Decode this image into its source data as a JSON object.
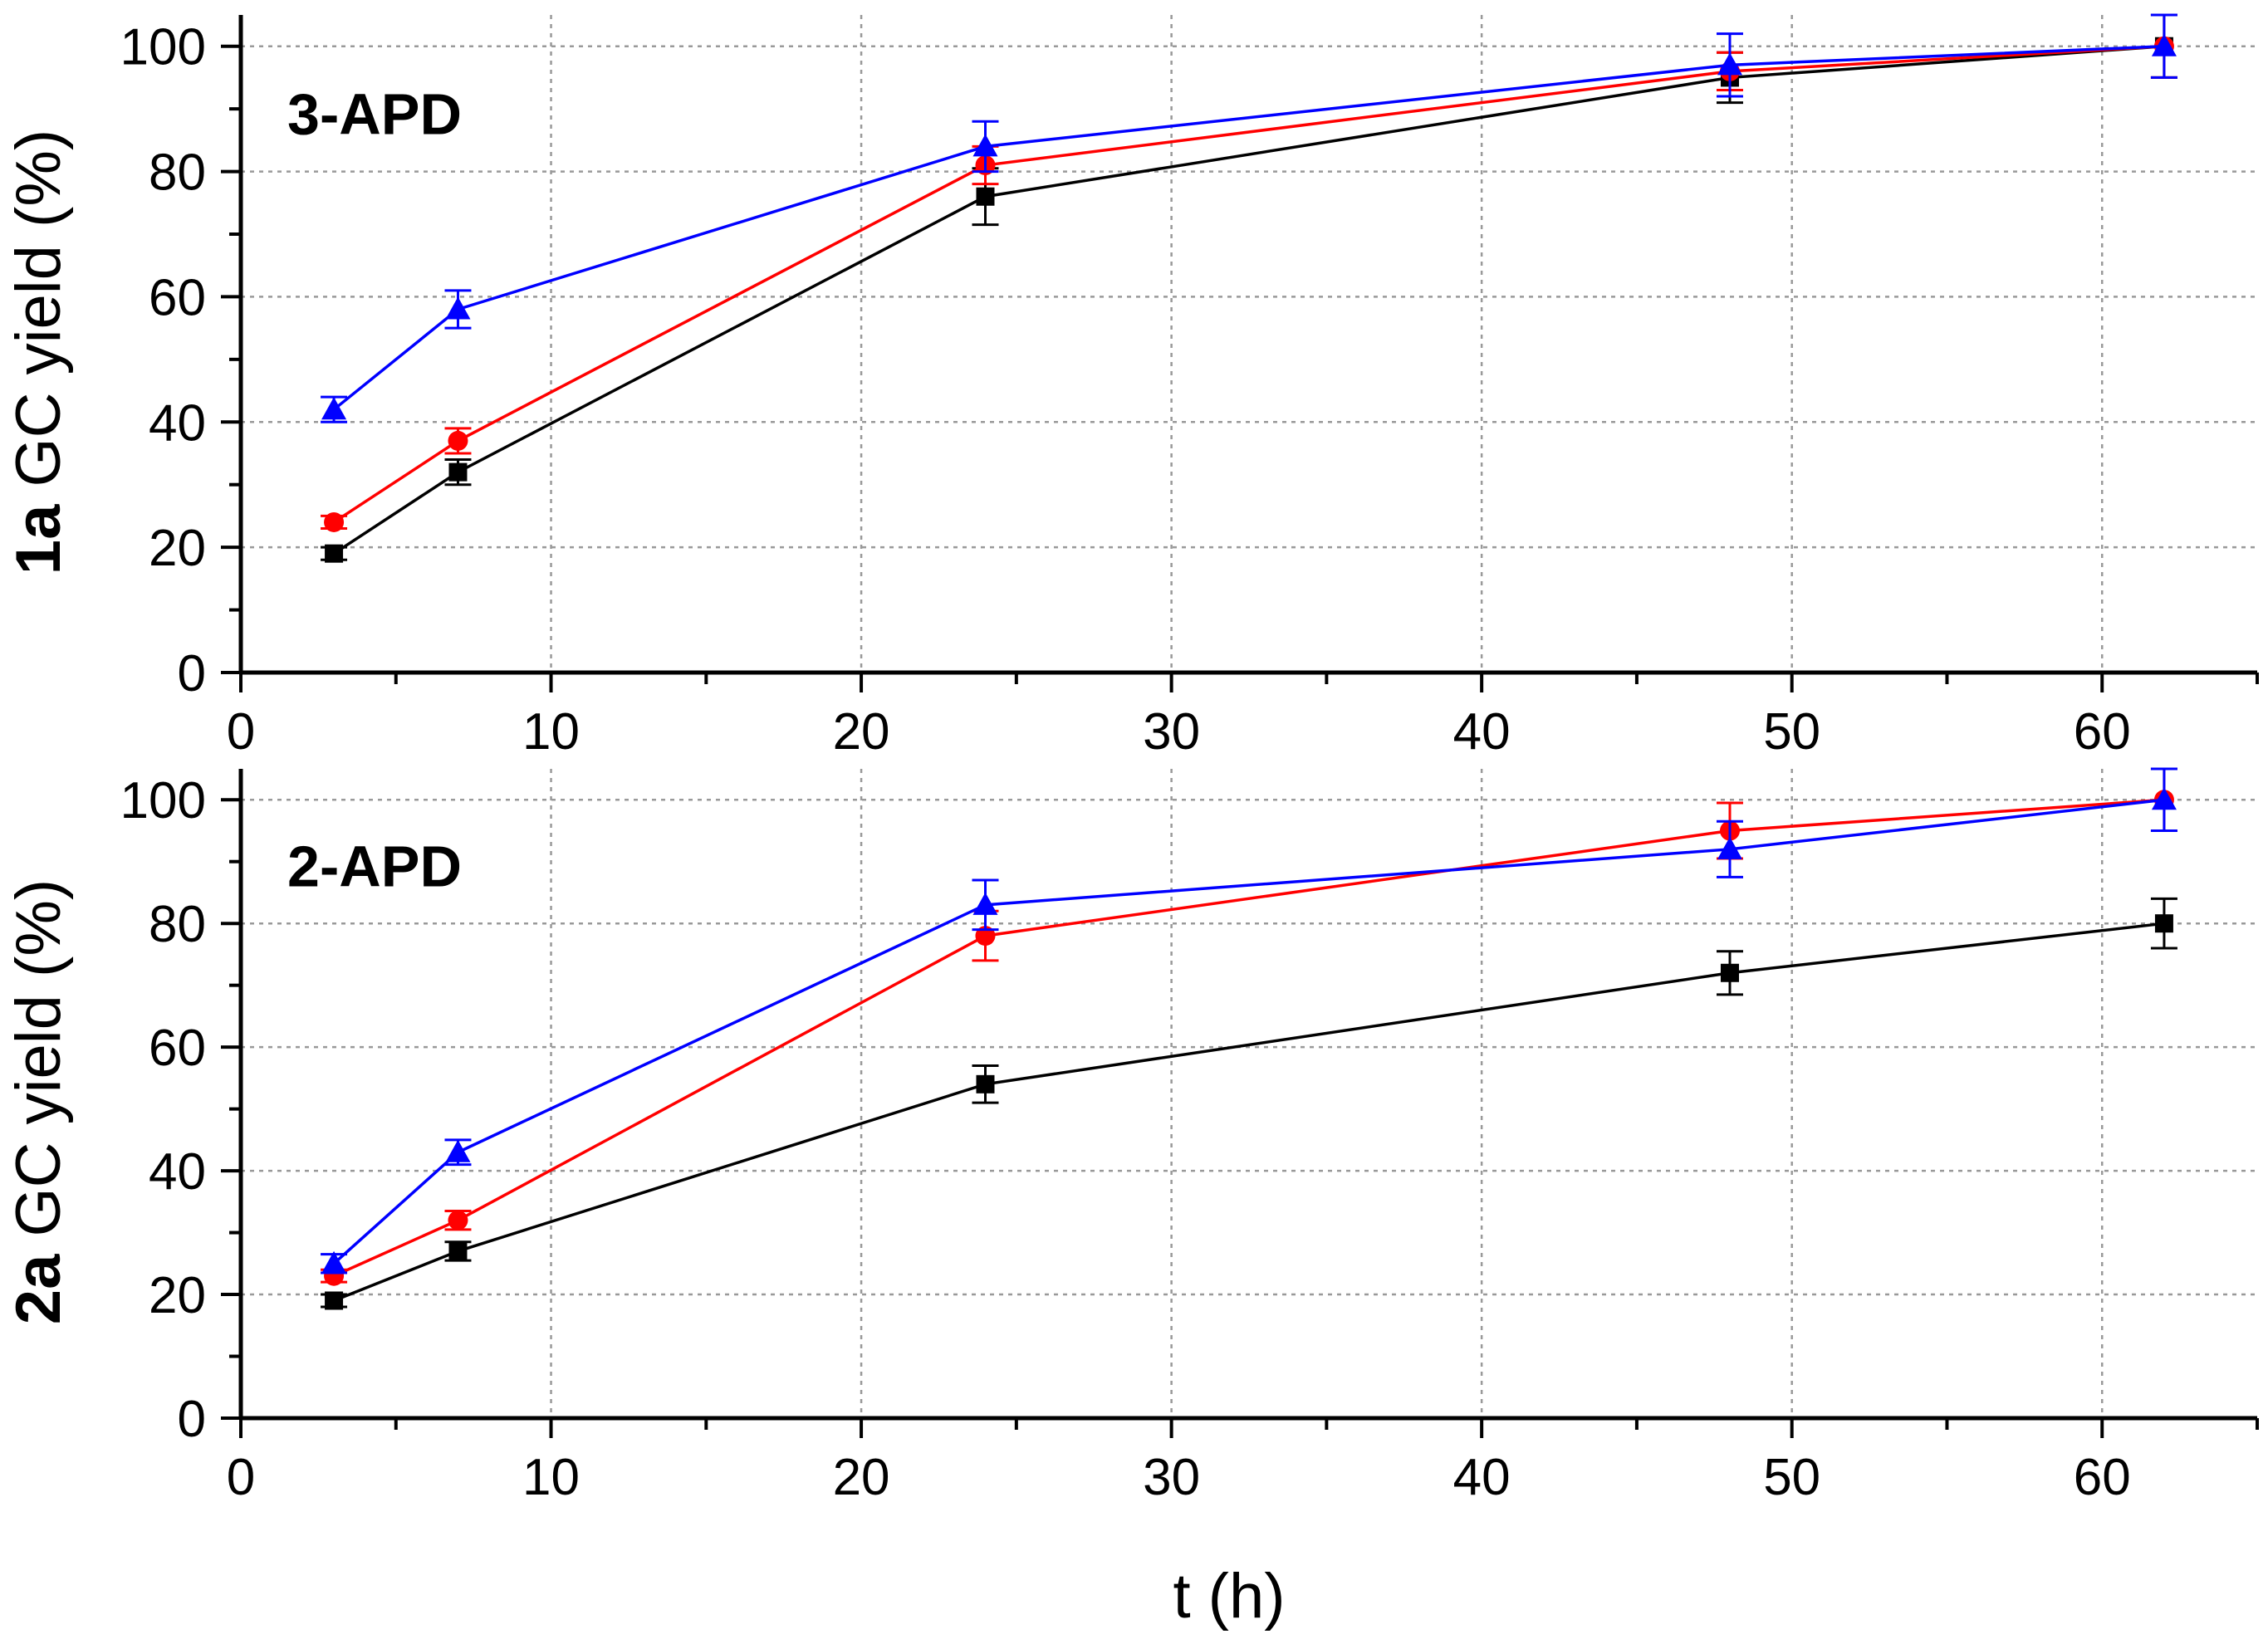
{
  "colors": {
    "black_series": "#000000",
    "red_series": "#ff0000",
    "blue_series": "#0000ff",
    "grid": "#999999",
    "axis": "#000000",
    "background": "#ffffff"
  },
  "chart_data": [
    {
      "type": "line",
      "panel": "top",
      "title": "3-APD",
      "xlabel": "t (h)",
      "ylabel_bold": "1a",
      "ylabel_rest": " GC yield (%)",
      "xlim": [
        0,
        65
      ],
      "ylim": [
        0,
        105
      ],
      "x_ticks": [
        0,
        10,
        20,
        30,
        40,
        50,
        60
      ],
      "x_tick_labels": [
        "0",
        "10",
        "20",
        "30",
        "40",
        "50",
        "60"
      ],
      "y_ticks": [
        0,
        20,
        40,
        60,
        80,
        100
      ],
      "y_tick_labels": [
        "0",
        "20",
        "40",
        "60",
        "80",
        "100"
      ],
      "grid": true,
      "x": [
        3,
        7,
        24,
        48,
        62
      ],
      "series": [
        {
          "name": "black",
          "marker": "square",
          "color": "#000000",
          "values": [
            19,
            32,
            76,
            95,
            100
          ],
          "errors": [
            1,
            2,
            4.5,
            4,
            5
          ]
        },
        {
          "name": "red",
          "marker": "circle",
          "color": "#ff0000",
          "values": [
            24,
            37,
            81,
            96,
            100
          ],
          "errors": [
            1,
            2,
            3,
            3,
            5
          ]
        },
        {
          "name": "blue",
          "marker": "triangle",
          "color": "#0000ff",
          "values": [
            42,
            58,
            84,
            97,
            100
          ],
          "errors": [
            2,
            3,
            4,
            5,
            5
          ]
        }
      ]
    },
    {
      "type": "line",
      "panel": "bottom",
      "title": "2-APD",
      "xlabel": "t (h)",
      "ylabel_bold": "2a",
      "ylabel_rest": " GC yield (%)",
      "xlim": [
        0,
        65
      ],
      "ylim": [
        0,
        105
      ],
      "x_ticks": [
        0,
        10,
        20,
        30,
        40,
        50,
        60
      ],
      "x_tick_labels": [
        "0",
        "10",
        "20",
        "30",
        "40",
        "50",
        "60"
      ],
      "y_ticks": [
        0,
        20,
        40,
        60,
        80,
        100
      ],
      "y_tick_labels": [
        "0",
        "20",
        "40",
        "60",
        "80",
        "100"
      ],
      "grid": true,
      "x": [
        3,
        7,
        24,
        48,
        62
      ],
      "series": [
        {
          "name": "black",
          "marker": "square",
          "color": "#000000",
          "values": [
            19,
            27,
            54,
            72,
            80
          ],
          "errors": [
            1,
            1.5,
            3,
            3.5,
            4
          ]
        },
        {
          "name": "red",
          "marker": "circle",
          "color": "#ff0000",
          "values": [
            23,
            32,
            78,
            95,
            100
          ],
          "errors": [
            1,
            1.5,
            4,
            4.5,
            5
          ]
        },
        {
          "name": "blue",
          "marker": "triangle",
          "color": "#0000ff",
          "values": [
            25,
            43,
            83,
            92,
            100
          ],
          "errors": [
            1.5,
            2,
            4,
            4.5,
            5
          ]
        }
      ]
    }
  ],
  "shared_xlabel": "t (h)"
}
